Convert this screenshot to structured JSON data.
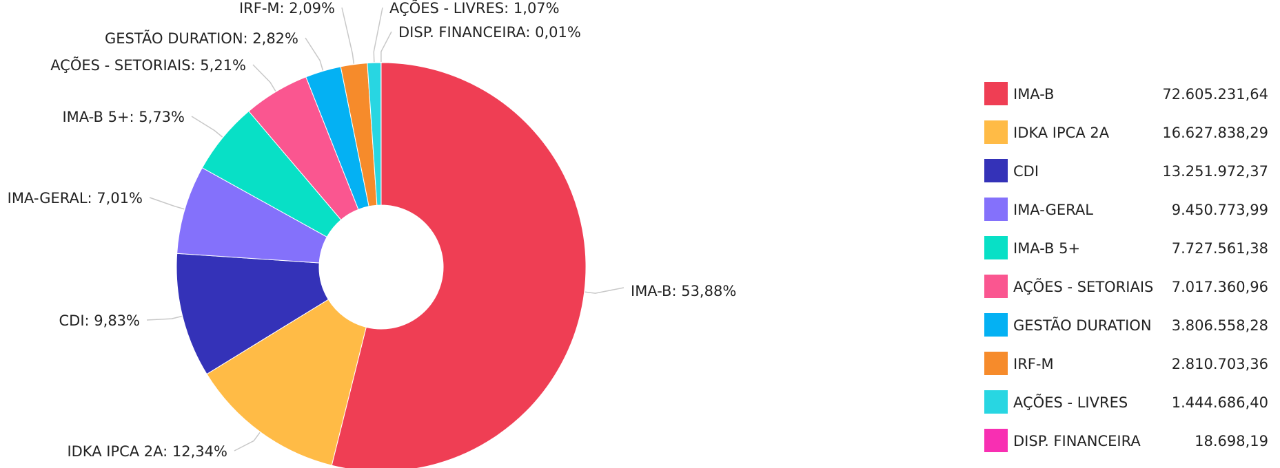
{
  "chart_data": {
    "type": "pie",
    "variant": "donut",
    "title": "",
    "slices": [
      {
        "name": "IMA-B",
        "percent": 53.88,
        "percent_label": "53,88%",
        "value": "72.605.231,64",
        "color": "#ef3e54"
      },
      {
        "name": "IDKA IPCA 2A",
        "percent": 12.34,
        "percent_label": "12,34%",
        "value": "16.627.838,29",
        "color": "#ffbb46"
      },
      {
        "name": "CDI",
        "percent": 9.83,
        "percent_label": "9,83%",
        "value": "13.251.972,37",
        "color": "#3432b8"
      },
      {
        "name": "IMA-GERAL",
        "percent": 7.01,
        "percent_label": "7,01%",
        "value": "9.450.773,99",
        "color": "#8471fb"
      },
      {
        "name": "IMA-B 5+",
        "percent": 5.73,
        "percent_label": "5,73%",
        "value": "7.727.561,38",
        "color": "#08e0c6"
      },
      {
        "name": "AÇÕES - SETORIAIS",
        "percent": 5.21,
        "percent_label": "5,21%",
        "value": "7.017.360,96",
        "color": "#fa5690"
      },
      {
        "name": "GESTÃO DURATION",
        "percent": 2.82,
        "percent_label": "2,82%",
        "value": "3.806.558,28",
        "color": "#04b1f3"
      },
      {
        "name": "IRF-M",
        "percent": 2.09,
        "percent_label": "2,09%",
        "value": "2.810.703,36",
        "color": "#f68b2b"
      },
      {
        "name": "AÇÕES - LIVRES",
        "percent": 1.07,
        "percent_label": "1,07%",
        "value": "1.444.686,40",
        "color": "#28d6e2"
      },
      {
        "name": "DISP. FINANCEIRA",
        "percent": 0.01,
        "percent_label": "0,01%",
        "value": "18.698,19",
        "color": "#f82fb2"
      }
    ],
    "legend_position": "right",
    "leader_line_color": "#c8c8c8"
  }
}
